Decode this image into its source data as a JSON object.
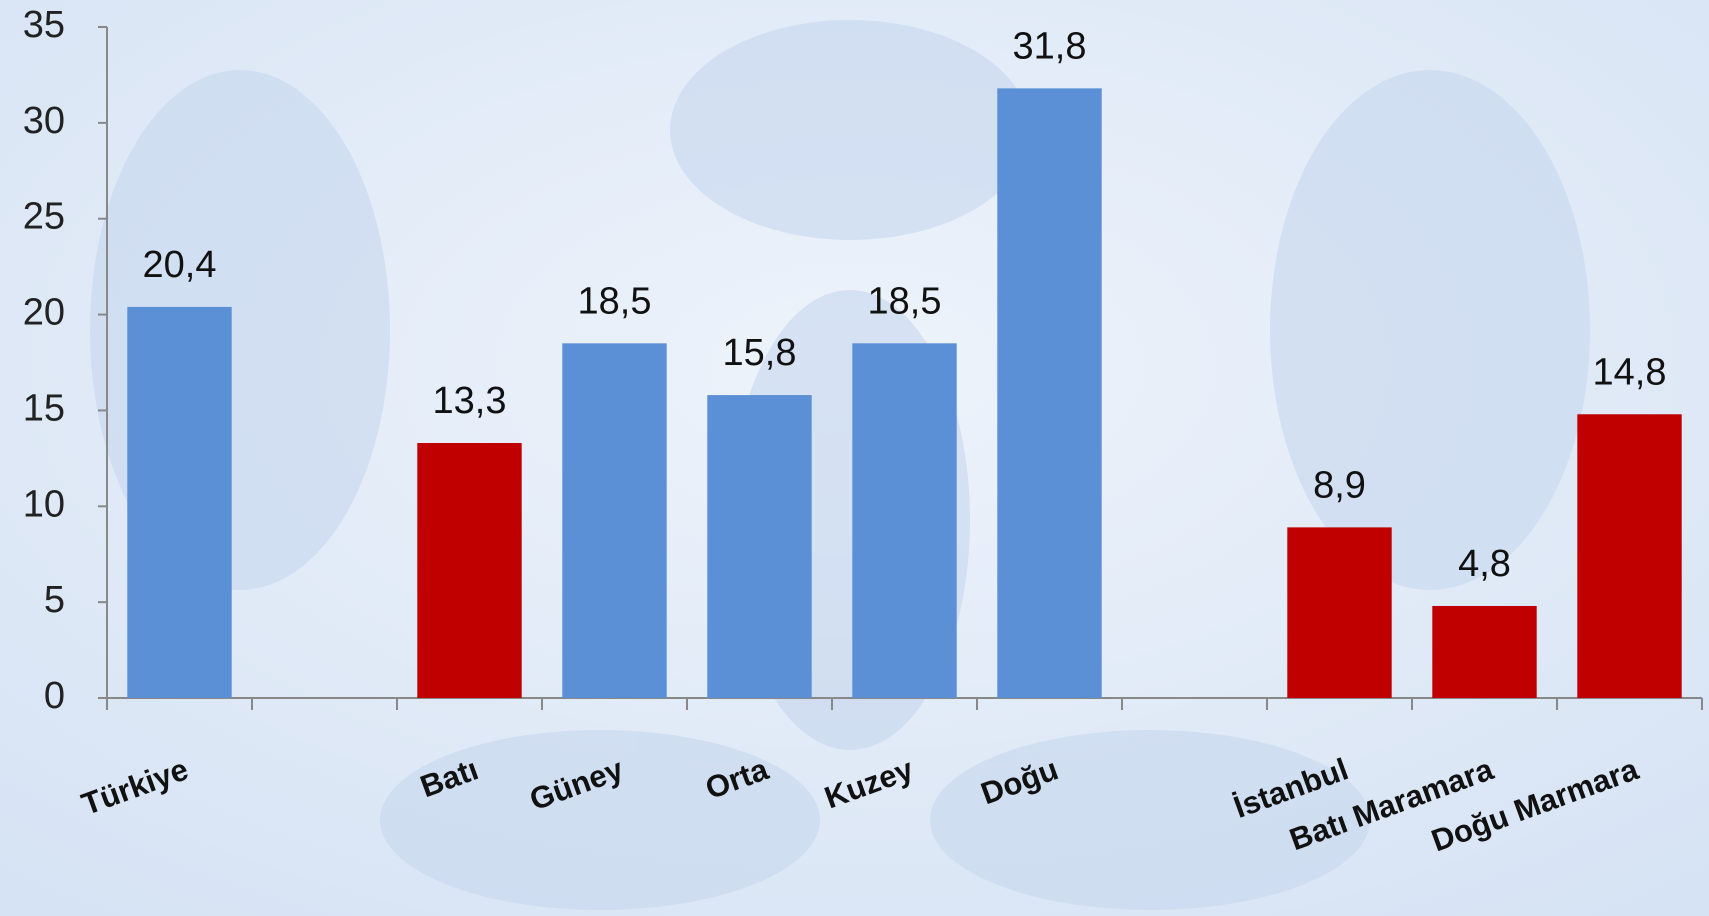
{
  "chart_data": {
    "type": "bar",
    "categories": [
      "Türkiye",
      null,
      "Batı",
      "Güney",
      "Orta",
      "Kuzey",
      "Doğu",
      null,
      "İstanbul",
      "Batı Maramara",
      "Doğu Marmara"
    ],
    "values": [
      20.4,
      null,
      13.3,
      18.5,
      15.8,
      18.5,
      31.8,
      null,
      8.9,
      4.8,
      14.8
    ],
    "value_labels": [
      "20,4",
      null,
      "13,3",
      "18,5",
      "15,8",
      "18,5",
      "31,8",
      null,
      "8,9",
      "4,8",
      "14,8"
    ],
    "colors": [
      "#5b8fd6",
      null,
      "#c00000",
      "#5b8fd6",
      "#5b8fd6",
      "#5b8fd6",
      "#5b8fd6",
      null,
      "#c00000",
      "#c00000",
      "#c00000"
    ],
    "ylim": [
      0,
      35
    ],
    "yticks": [
      0,
      5,
      10,
      15,
      20,
      25,
      30,
      35
    ]
  }
}
